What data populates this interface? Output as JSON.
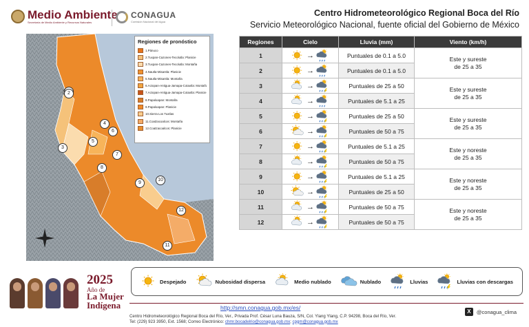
{
  "header": {
    "org_name": "Medio Ambiente",
    "org_sub": "Secretaría de Medio Ambiente y Recursos Naturales",
    "agency": "CONAGUA",
    "agency_sub": "Comisión Nacional del Agua",
    "title": "Centro Hidrometeorológico Regional Boca del Río",
    "subtitle": "Servicio Meteorológico Nacional, fuente oficial del Gobierno de México"
  },
  "legend": {
    "title": "Regiones de pronóstico",
    "items": [
      {
        "label": "1.Pánuco",
        "color": "#e8741a"
      },
      {
        "label": "2.Tuxpan-Cazones-Tecolutla: Planicie",
        "color": "#f5c27a"
      },
      {
        "label": "3.Tuxpan-Cazones-Tecolutla: Montaña",
        "color": "#fbdcae"
      },
      {
        "label": "4.Nautla-Misantla: Planicie",
        "color": "#f0922e"
      },
      {
        "label": "5.Nautla-Misantla: Montaña",
        "color": "#f7b45a"
      },
      {
        "label": "6.Actopan-Antigua-Jamapa-Cotaxtla: Montaña",
        "color": "#f2a640"
      },
      {
        "label": "7.Actopan-Antigua-Jamapa-Cotaxtla: Planicie",
        "color": "#c8541a"
      },
      {
        "label": "8.Papaloapan: Montaña",
        "color": "#d87d2a"
      },
      {
        "label": "9.Papaloapan: Planicie",
        "color": "#f08a28"
      },
      {
        "label": "10.Sierra Los Tuxtlas",
        "color": "#f9cd8e"
      },
      {
        "label": "11.Coatzacoalcos: Montaña",
        "color": "#f4ac68"
      },
      {
        "label": "12.Coatzacoalcos: Planicie",
        "color": "#e9902f"
      }
    ]
  },
  "table": {
    "headers": [
      "Regiones",
      "Cielo",
      "Lluvia (mm)",
      "Viento (km/h)"
    ],
    "rows": [
      {
        "region": "1",
        "rain": "Puntuales de 0.1 a 5.0",
        "from": "sun",
        "to": "rain"
      },
      {
        "region": "2",
        "rain": "Puntuales de 0.1 a 5.0",
        "from": "sun",
        "to": "rain"
      },
      {
        "region": "3",
        "rain": "Puntuales de 25 a 50",
        "from": "cloudy",
        "to": "storm"
      },
      {
        "region": "4",
        "rain": "Puntuales de 5.1 a 25",
        "from": "cloudy",
        "to": "rain"
      },
      {
        "region": "5",
        "rain": "Puntuales de 25 a 50",
        "from": "sun",
        "to": "storm"
      },
      {
        "region": "6",
        "rain": "Puntuales de 50 a 75",
        "from": "partly",
        "to": "storm"
      },
      {
        "region": "7",
        "rain": "Puntuales de 5.1 a 25",
        "from": "sun",
        "to": "storm"
      },
      {
        "region": "8",
        "rain": "Puntuales de 50 a 75",
        "from": "cloudy",
        "to": "storm"
      },
      {
        "region": "9",
        "rain": "Puntuales de 5.1 a 25",
        "from": "sun",
        "to": "storm"
      },
      {
        "region": "10",
        "rain": "Puntuales de 25 a 50",
        "from": "partly",
        "to": "storm"
      },
      {
        "region": "11",
        "rain": "Puntuales de 50 a 75",
        "from": "cloudy",
        "to": "storm"
      },
      {
        "region": "12",
        "rain": "Puntuales de 50 a 75",
        "from": "cloudy",
        "to": "storm"
      }
    ],
    "wind": [
      {
        "l1": "Este y sureste",
        "l2": "de 25 a 35"
      },
      {
        "l1": "Este y sureste",
        "l2": "de 25 a 35"
      },
      {
        "l1": "Este y sureste",
        "l2": "de 25 a 35"
      },
      {
        "l1": "Este y noreste",
        "l2": "de 25 a 35"
      },
      {
        "l1": "Este y noreste",
        "l2": "de 25 a 35"
      },
      {
        "l1": "Este y noreste",
        "l2": "de 25 a 35"
      }
    ]
  },
  "icon_legend": [
    {
      "label": "Despejado",
      "icon": "sun"
    },
    {
      "label": "Nubosidad dispersa",
      "icon": "partly"
    },
    {
      "label": "Medio nublado",
      "icon": "cloudy"
    },
    {
      "label": "Nublado",
      "icon": "cloud"
    },
    {
      "label": "Lluvias",
      "icon": "rain"
    },
    {
      "label": "Lluvias con descargas",
      "icon": "storm"
    }
  ],
  "footer": {
    "year": "2025",
    "year_sub": "Año de",
    "year_line1": "La Mujer",
    "year_line2": "Indígena",
    "url": "http://smn.conagua.gob.mx/es/",
    "address": "Centro Hidrometeorológico Regional Boca del Río, Ver., Privada Prof. César Luna Bauza, S/N, Col. Ylang Ylang, C.P. 94298, Boca del Río, Ver.",
    "phone": "Tel: (229) 923 3950, Ext. 1568; Correo Electrónico:",
    "email1": "chmr.bocadelrio@conagua.gob.mx",
    "email2": "cpgm@conagua.gob.mx",
    "social_handle": "@conagua_clima"
  },
  "map_labels": [
    "1",
    "2",
    "3",
    "4",
    "5",
    "6",
    "7",
    "8",
    "9",
    "10",
    "11",
    "12"
  ]
}
